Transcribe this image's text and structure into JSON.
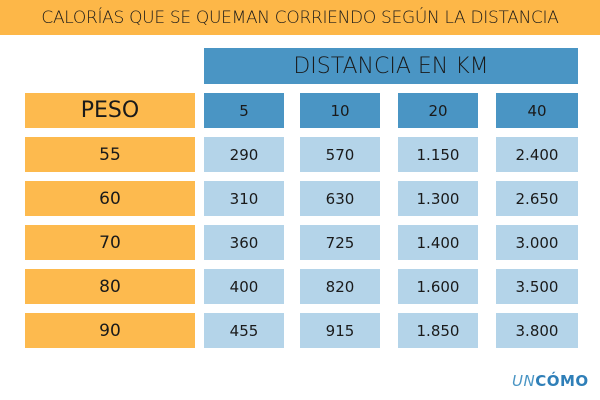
{
  "title": "CALORÍAS QUE SE QUEMAN CORRIENDO SEGÚN LA DISTANCIA",
  "logo": {
    "part1": "UN",
    "part2": "CÓMO"
  },
  "colors": {
    "orange": "#FDB748",
    "header_blue": "#4A95C4",
    "cell_blue": "#B4D4E9"
  },
  "chart_data": {
    "type": "table",
    "title": "CALORÍAS QUE SE QUEMAN CORRIENDO SEGÚN LA DISTANCIA",
    "column_group_label": "DISTANCIA EN KM",
    "row_header_label": "PESO",
    "columns": [
      "5",
      "10",
      "20",
      "40"
    ],
    "rows": [
      {
        "label": "55",
        "values": [
          "290",
          "570",
          "1.150",
          "2.400"
        ]
      },
      {
        "label": "60",
        "values": [
          "310",
          "630",
          "1.300",
          "2.650"
        ]
      },
      {
        "label": "70",
        "values": [
          "360",
          "725",
          "1.400",
          "3.000"
        ]
      },
      {
        "label": "80",
        "values": [
          "400",
          "820",
          "1.600",
          "3.500"
        ]
      },
      {
        "label": "90",
        "values": [
          "455",
          "915",
          "1.850",
          "3.800"
        ]
      }
    ]
  }
}
